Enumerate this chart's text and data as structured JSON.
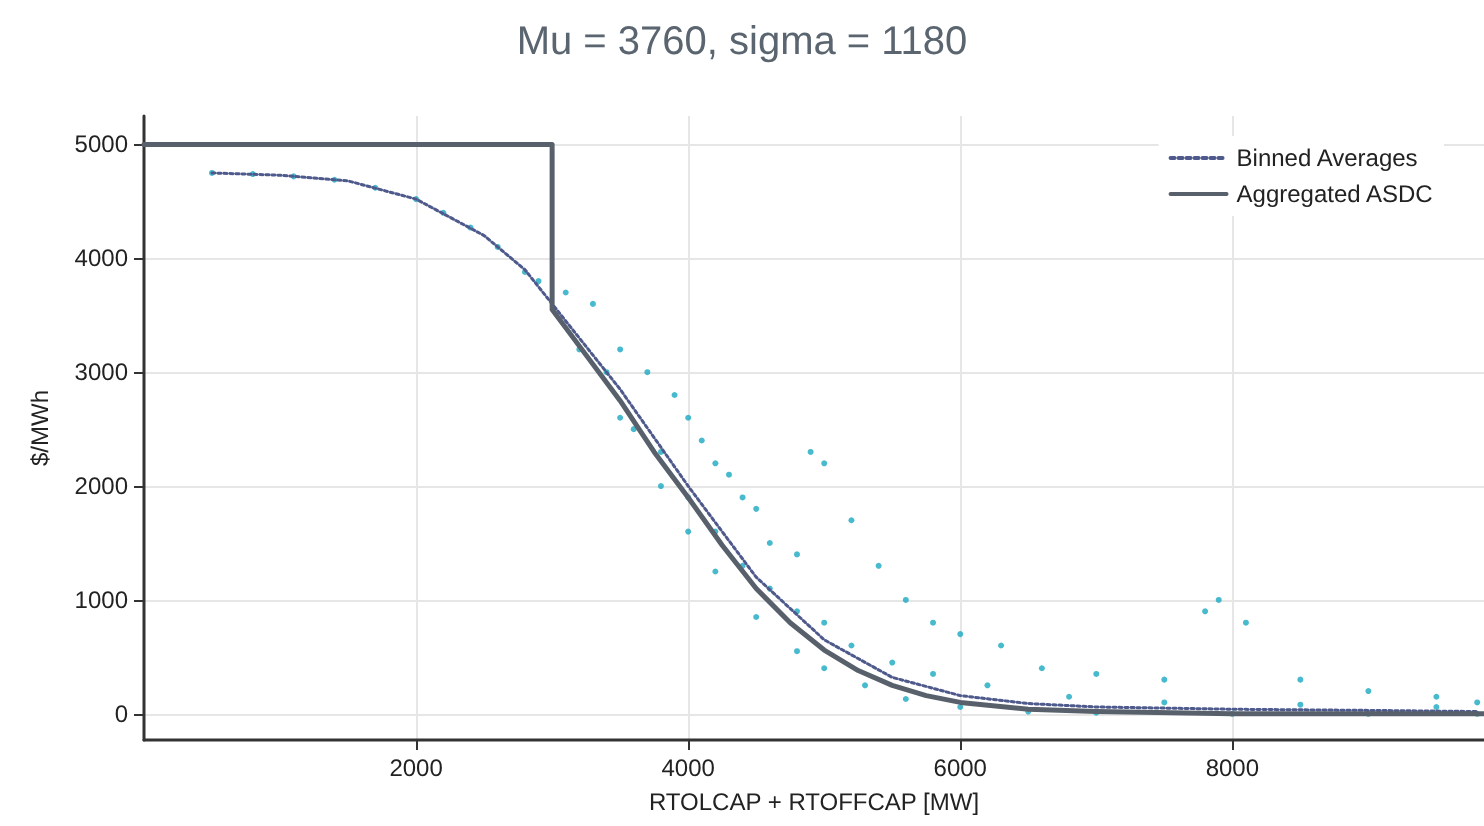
{
  "chart_data": {
    "type": "scatter",
    "title": "Mu = 3760, sigma = 1180",
    "xlabel": "RTOLCAP + RTOFFCAP [MW]",
    "ylabel": "$/MWh",
    "xlim": [
      0,
      9850
    ],
    "ylim": [
      -230,
      5250
    ],
    "xticks": [
      2000,
      4000,
      6000,
      8000
    ],
    "yticks": [
      0,
      1000,
      2000,
      3000,
      4000,
      5000
    ],
    "grid": true,
    "legend": "top right",
    "series": [
      {
        "color": "#1aa9c0",
        "marker": "circle",
        "x": [
          500,
          800,
          1100,
          1400,
          1700,
          2000,
          2200,
          2400,
          2600,
          2800,
          2900,
          3200,
          3500,
          3800,
          4000,
          4200,
          4500,
          4800,
          5000,
          5300,
          5600,
          6000,
          6500,
          7000,
          8000,
          9000,
          9800,
          3100,
          3300,
          3500,
          3700,
          3900,
          4000,
          4100,
          4200,
          4300,
          4400,
          4500,
          4600,
          4800,
          4900,
          5000,
          5200,
          5400,
          5600,
          5800,
          6000,
          6300,
          6600,
          7000,
          7500,
          7800,
          7900,
          8100,
          8500,
          9000,
          9500,
          9800,
          3400,
          3600,
          3800,
          4000,
          4200,
          4400,
          4600,
          4800,
          5000,
          5200,
          5500,
          5800,
          6200,
          6800,
          7500,
          8500,
          9500
        ],
        "values": [
          4750,
          4740,
          4720,
          4690,
          4620,
          4520,
          4400,
          4270,
          4100,
          3880,
          3800,
          3200,
          2600,
          2000,
          1600,
          1250,
          850,
          550,
          400,
          250,
          130,
          60,
          20,
          10,
          0,
          0,
          0,
          3700,
          3600,
          3200,
          3000,
          2800,
          2600,
          2400,
          2200,
          2100,
          1900,
          1800,
          1500,
          1400,
          2300,
          2200,
          1700,
          1300,
          1000,
          800,
          700,
          600,
          400,
          350,
          300,
          900,
          1000,
          800,
          300,
          200,
          150,
          100,
          3000,
          2500,
          2300,
          1900,
          1600,
          1300,
          1100,
          900,
          800,
          600,
          450,
          350,
          250,
          150,
          100,
          80,
          60
        ]
      },
      {
        "type": "line",
        "name": "Binned Averages",
        "color": "#4f5a8c",
        "line_style": "dotted",
        "marker": "none",
        "x": [
          500,
          1000,
          1500,
          2000,
          2500,
          2800,
          3000,
          3500,
          4000,
          4500,
          5000,
          5500,
          6000,
          6500,
          7000,
          8000,
          9000,
          9800
        ],
        "values": [
          4750,
          4730,
          4680,
          4520,
          4200,
          3900,
          3600,
          2850,
          2000,
          1200,
          650,
          320,
          160,
          90,
          60,
          40,
          30,
          20
        ]
      },
      {
        "type": "line",
        "name": "Aggregated ASDC",
        "color": "#58616b",
        "line_style": "solid",
        "marker": "none",
        "x": [
          0,
          3000,
          3000,
          3250,
          3500,
          3750,
          4000,
          4250,
          4500,
          4750,
          5000,
          5250,
          5500,
          5750,
          6000,
          6500,
          7000,
          8000,
          9850
        ],
        "values": [
          5000,
          5000,
          3550,
          3150,
          2750,
          2300,
          1900,
          1480,
          1100,
          800,
          560,
          380,
          250,
          160,
          100,
          40,
          20,
          0,
          0
        ]
      }
    ]
  }
}
